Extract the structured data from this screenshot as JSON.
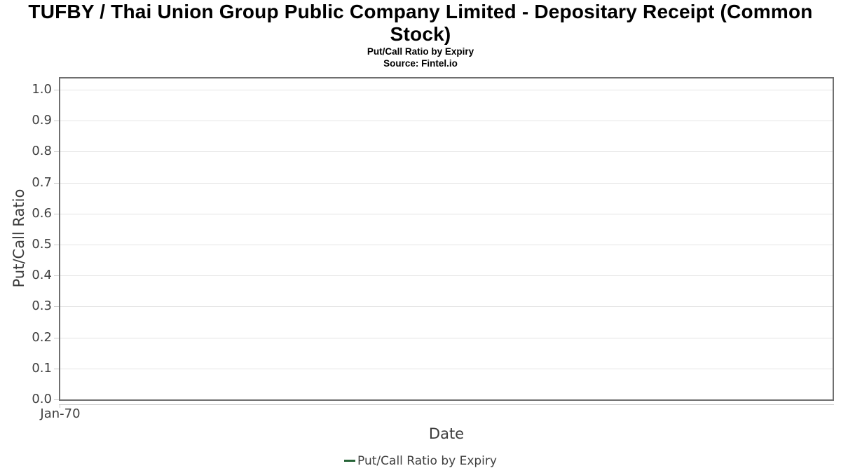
{
  "header": {
    "title_line1": "TUFBY / Thai Union Group Public Company Limited - Depositary Receipt (Common",
    "title_line2": "Stock)",
    "subtitle": "Put/Call Ratio by Expiry",
    "source": "Source: Fintel.io"
  },
  "chart_data": {
    "type": "line",
    "title": "TUFBY / Thai Union Group Public Company Limited - Depositary Receipt (Common Stock)",
    "subtitle": "Put/Call Ratio by Expiry",
    "source": "Source: Fintel.io",
    "xlabel": "Date",
    "ylabel": "Put/Call Ratio",
    "x_tick_labels": [
      "Jan-70"
    ],
    "y_tick_values": [
      0.0,
      0.1,
      0.2,
      0.3,
      0.4,
      0.5,
      0.6,
      0.7,
      0.8,
      0.9,
      1.0
    ],
    "y_tick_labels": [
      "0.0",
      "0.1",
      "0.2",
      "0.3",
      "0.4",
      "0.5",
      "0.6",
      "0.7",
      "0.8",
      "0.9",
      "1.0"
    ],
    "ylim": [
      0,
      1.04
    ],
    "grid": "horizontal-only",
    "legend": {
      "position": "bottom-center",
      "entries": [
        {
          "label": "Put/Call Ratio by Expiry",
          "color": "#266437"
        }
      ]
    },
    "series": [
      {
        "name": "Put/Call Ratio by Expiry",
        "color": "#266437",
        "x": [],
        "values": []
      }
    ]
  },
  "colors": {
    "background": "#ffffff",
    "plot_border": "#6f6f6f",
    "gridline": "#e4e4e4",
    "axis_line": "#c9c9c9",
    "tick_mark": "#c9c9c9",
    "title_text": "#000000",
    "axis_title_text": "#3c3c3c",
    "tick_label_text": "#3f3f3f",
    "legend_text": "#3f3f3f",
    "series_green": "#266437"
  }
}
